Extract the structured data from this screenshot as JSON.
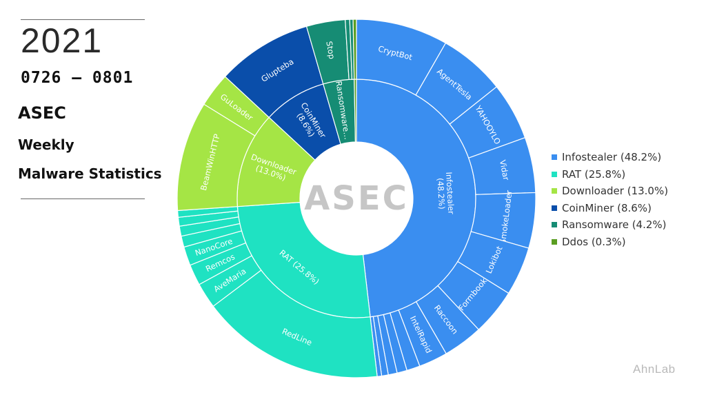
{
  "header": {
    "year": "2021",
    "dates": "0726 – 0801",
    "title_line1": "ASEC",
    "title_line2": "Weekly",
    "title_line3": "Malware Statistics"
  },
  "center_logo": "ASEC",
  "brand": "AhnLab",
  "chart_data": {
    "type": "sunburst",
    "categories": [
      {
        "name": "Infostealer",
        "label": "Infostealer\n(48.2%)",
        "value": 48.2,
        "color": "#3a8ef0",
        "children": [
          {
            "name": "CryptBot",
            "value": 8.3
          },
          {
            "name": "AgentTesla",
            "value": 6.0
          },
          {
            "name": "YAHOOYLO",
            "value": 5.2
          },
          {
            "name": "Vidar",
            "value": 5.0
          },
          {
            "name": "SmokeLoader",
            "value": 5.0
          },
          {
            "name": "Lokibot",
            "value": 4.4
          },
          {
            "name": "Formbook",
            "value": 4.2
          },
          {
            "name": "Raccoon",
            "value": 3.6
          },
          {
            "name": "IntelRapid",
            "value": 2.6
          },
          {
            "name": "",
            "value": 1.2
          },
          {
            "name": "",
            "value": 0.9
          },
          {
            "name": "",
            "value": 0.8
          },
          {
            "name": "",
            "value": 0.6
          },
          {
            "name": "",
            "value": 0.4
          }
        ]
      },
      {
        "name": "RAT",
        "label": "RAT (25.8%)",
        "value": 25.8,
        "color": "#1fe2c2",
        "children": [
          {
            "name": "RedLine",
            "value": 16.6
          },
          {
            "name": "AveMaria",
            "value": 2.3
          },
          {
            "name": "Remcos",
            "value": 1.9
          },
          {
            "name": "NanoCore",
            "value": 1.7
          },
          {
            "name": "",
            "value": 1.0
          },
          {
            "name": "",
            "value": 0.9
          },
          {
            "name": "",
            "value": 0.8
          },
          {
            "name": "",
            "value": 0.6
          }
        ]
      },
      {
        "name": "Downloader",
        "label": "Downloader\n(13.0%)",
        "value": 13.0,
        "color": "#a5e545",
        "children": [
          {
            "name": "BeamWinHTTP",
            "value": 9.9
          },
          {
            "name": "GuLoader",
            "value": 3.1
          }
        ]
      },
      {
        "name": "CoinMiner",
        "label": "CoinMiner\n(8.6%)",
        "value": 8.6,
        "color": "#0a4eaa",
        "children": [
          {
            "name": "Glupteba",
            "value": 8.6
          }
        ]
      },
      {
        "name": "Ransomware",
        "label": "Ransomware…",
        "value": 4.2,
        "color": "#168c74",
        "children": [
          {
            "name": "Stop",
            "value": 3.5
          },
          {
            "name": "",
            "value": 0.4
          },
          {
            "name": "",
            "value": 0.3
          }
        ]
      },
      {
        "name": "Ddos",
        "label": "",
        "value": 0.3,
        "color": "#5b9e22",
        "children": [
          {
            "name": "",
            "value": 0.3
          }
        ]
      }
    ],
    "legend": [
      {
        "label": "Infostealer (48.2%)",
        "color": "#3a8ef0"
      },
      {
        "label": "RAT (25.8%)",
        "color": "#1fe2c2"
      },
      {
        "label": "Downloader (13.0%)",
        "color": "#a5e545"
      },
      {
        "label": "CoinMiner (8.6%)",
        "color": "#0a4eaa"
      },
      {
        "label": "Ransomware (4.2%)",
        "color": "#168c74"
      },
      {
        "label": "Ddos (0.3%)",
        "color": "#5b9e22"
      }
    ],
    "legend_position": "right"
  }
}
